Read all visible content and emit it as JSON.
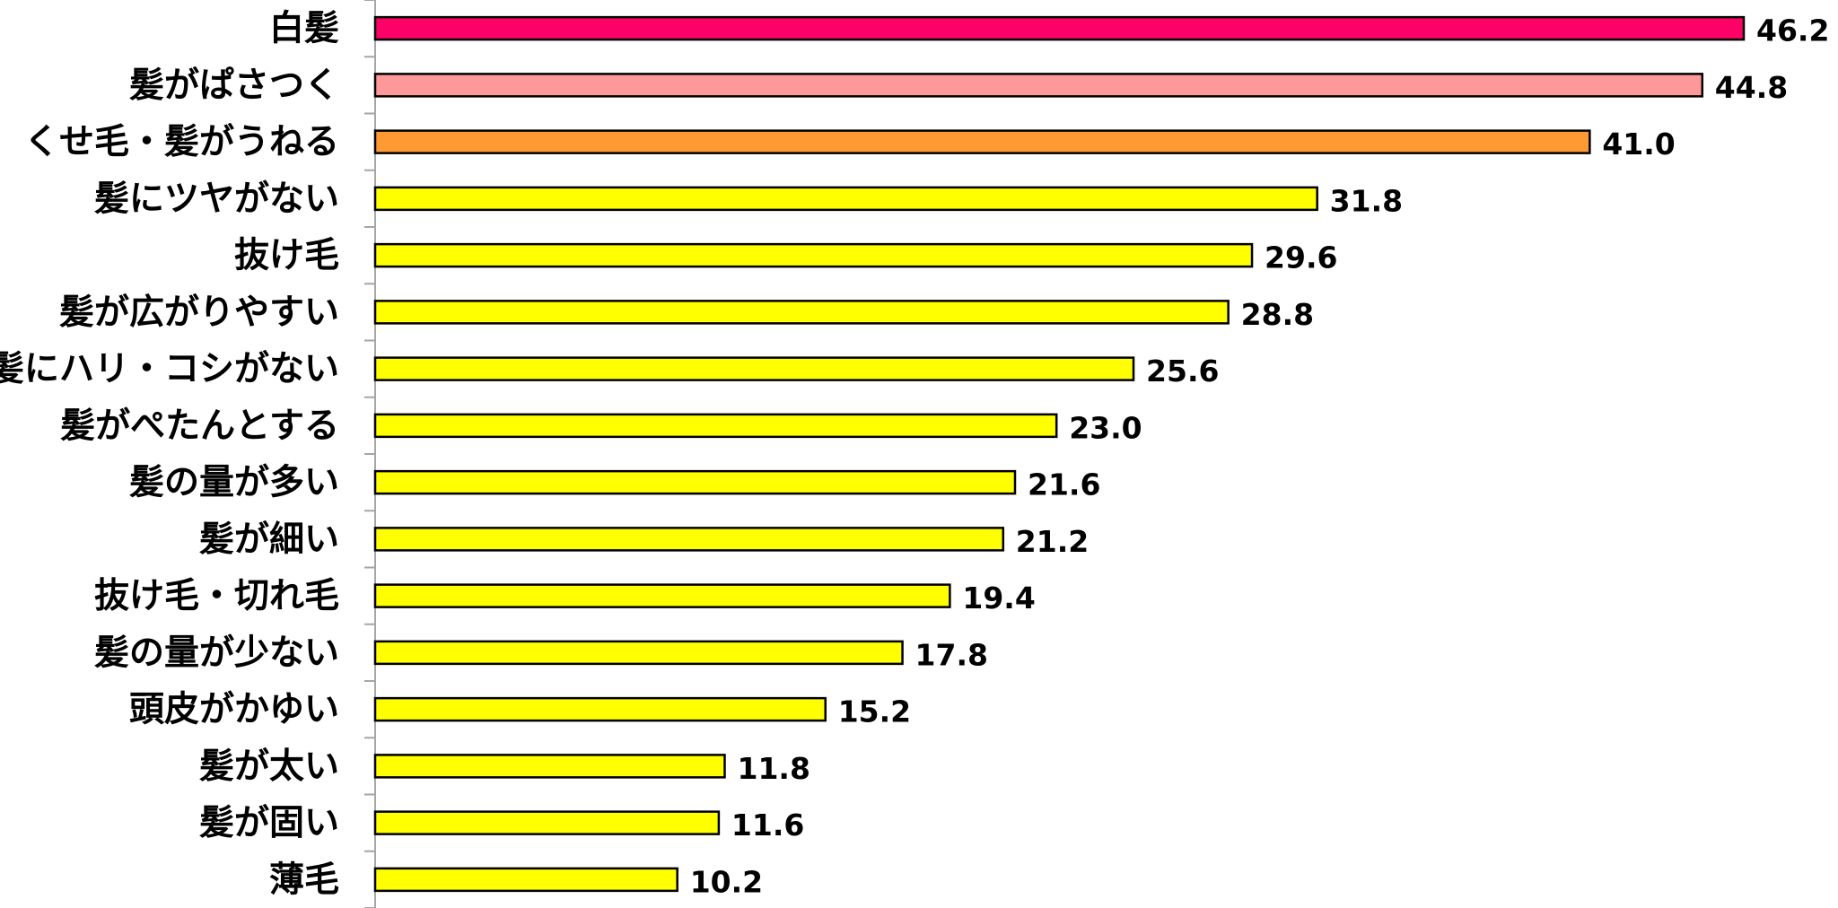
{
  "chart_data": {
    "type": "bar",
    "orientation": "horizontal",
    "title": "",
    "xlabel": "",
    "ylabel": "",
    "xlim": [
      0,
      50
    ],
    "grid": false,
    "legend": "none",
    "categories": [
      "白髪",
      "髪がぱさつく",
      "くせ毛・髪がうねる",
      "髪にツヤがない",
      "抜け毛",
      "髪が広がりやすい",
      "髪にハリ・コシがない",
      "髪がぺたんとする",
      "髪の量が多い",
      "髪が細い",
      "抜け毛・切れ毛",
      "髪の量が少ない",
      "頭皮がかゆい",
      "髪が太い",
      "髪が固い",
      "薄毛"
    ],
    "values": [
      46.2,
      44.8,
      41.0,
      31.8,
      29.6,
      28.8,
      25.6,
      23.0,
      21.6,
      21.2,
      19.4,
      17.8,
      15.2,
      11.8,
      11.6,
      10.2
    ],
    "value_labels": [
      "46.2",
      "44.8",
      "41.0",
      "31.8",
      "29.6",
      "28.8",
      "25.6",
      "23.0",
      "21.6",
      "21.2",
      "19.4",
      "17.8",
      "15.2",
      "11.8",
      "11.6",
      "10.2"
    ],
    "bar_colors": [
      "#FF0066",
      "#FF9999",
      "#FF9933",
      "#FFFF00",
      "#FFFF00",
      "#FFFF00",
      "#FFFF00",
      "#FFFF00",
      "#FFFF00",
      "#FFFF00",
      "#FFFF00",
      "#FFFF00",
      "#FFFF00",
      "#FFFF00",
      "#FFFF00",
      "#FFFF00"
    ],
    "bar_outline_color": "#000000",
    "axis_color": "#A6A6A6"
  }
}
